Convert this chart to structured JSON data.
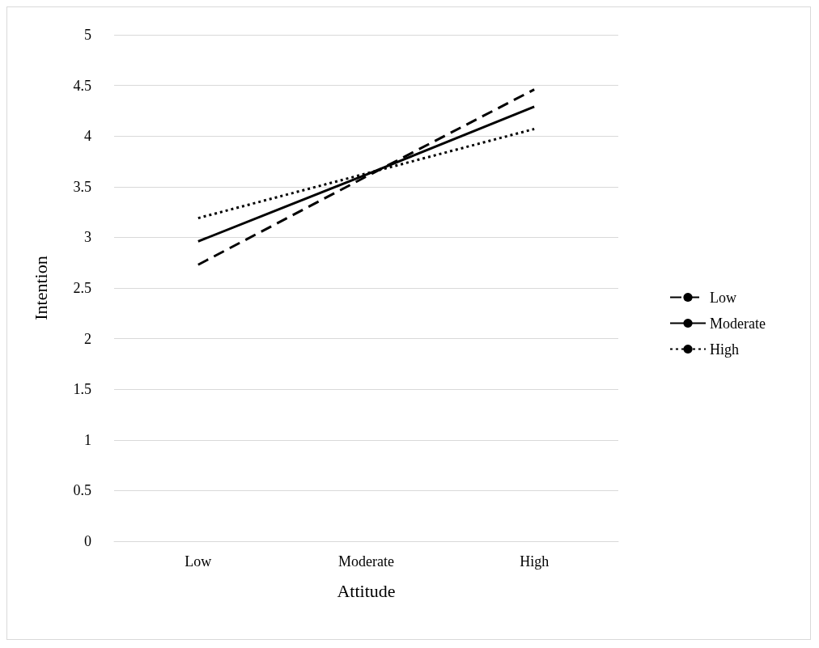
{
  "chart_data": {
    "type": "line",
    "xlabel": "Attitude",
    "ylabel": "Intention",
    "categories": [
      "Low",
      "Moderate",
      "High"
    ],
    "series": [
      {
        "name": "Low",
        "color": "#000000",
        "line_style": "dashed",
        "values": [
          2.73,
          3.6,
          4.46
        ]
      },
      {
        "name": "Moderate",
        "color": "#000000",
        "line_style": "solid",
        "values": [
          2.96,
          3.62,
          4.29
        ]
      },
      {
        "name": "High",
        "color": "#000000",
        "line_style": "dotted",
        "values": [
          3.19,
          3.63,
          4.07
        ]
      }
    ],
    "ylim": [
      0,
      5
    ],
    "yticks": [
      0,
      0.5,
      1,
      1.5,
      2,
      2.5,
      3,
      3.5,
      4,
      4.5,
      5
    ],
    "grid": "y",
    "legend": "right",
    "marker": "none"
  }
}
